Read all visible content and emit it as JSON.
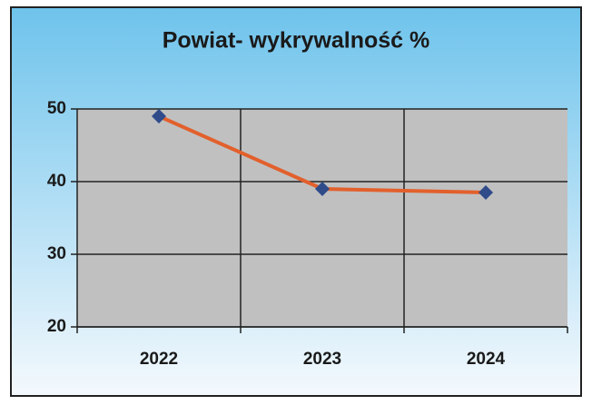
{
  "chart_data": {
    "type": "line",
    "title": "Powiat- wykrywalność %",
    "categories": [
      "2022",
      "2023",
      "2024"
    ],
    "values": [
      49,
      39,
      38.5
    ],
    "color": "#e2602c",
    "marker_color": "#2f4b8a",
    "ylim": [
      20,
      50
    ],
    "yticks": [
      20,
      30,
      40,
      50
    ],
    "grid": true
  }
}
